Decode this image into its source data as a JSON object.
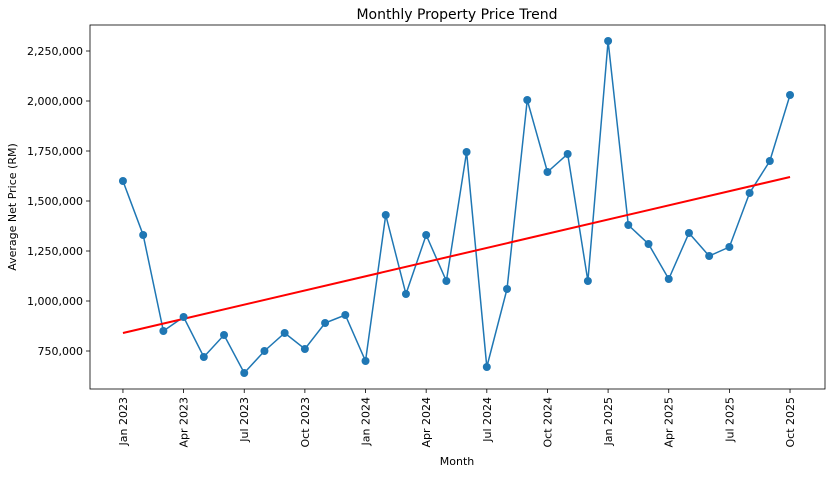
{
  "chart_data": {
    "type": "line",
    "title": "Monthly Property Price Trend",
    "xlabel": "Month",
    "ylabel": "Average Net Price (RM)",
    "x": [
      "2023-01",
      "2023-02",
      "2023-03",
      "2023-04",
      "2023-05",
      "2023-06",
      "2023-07",
      "2023-08",
      "2023-09",
      "2023-10",
      "2023-11",
      "2023-12",
      "2024-01",
      "2024-02",
      "2024-03",
      "2024-04",
      "2024-05",
      "2024-06",
      "2024-07",
      "2024-08",
      "2024-09",
      "2024-10",
      "2024-11",
      "2024-12",
      "2025-01",
      "2025-02",
      "2025-03",
      "2025-04",
      "2025-05",
      "2025-06",
      "2025-07",
      "2025-08",
      "2025-09",
      "2025-10"
    ],
    "series": [
      {
        "values": [
          1600000,
          1330000,
          850000,
          920000,
          720000,
          830000,
          640000,
          750000,
          840000,
          760000,
          890000,
          930000,
          700000,
          1430000,
          1035000,
          1330000,
          1100000,
          1745000,
          670000,
          1060000,
          2005000,
          1645000,
          1735000,
          1100000,
          2300000,
          1380000,
          1285000,
          1110000,
          1340000,
          1225000,
          1270000,
          1540000,
          1700000,
          2030000
        ],
        "color": "#1f77b4",
        "marker": "circle"
      }
    ],
    "trend_line": {
      "start": [
        "2023-01",
        840000
      ],
      "end": [
        "2025-10",
        1620000
      ],
      "color": "#ff0000"
    },
    "xticks": [
      "Jan 2023",
      "Apr 2023",
      "Jul 2023",
      "Oct 2023",
      "Jan 2024",
      "Apr 2024",
      "Jul 2024",
      "Oct 2024",
      "Jan 2025",
      "Apr 2025",
      "Jul 2025",
      "Oct 2025"
    ],
    "yticks": [
      750000,
      1000000,
      1250000,
      1500000,
      1750000,
      2000000,
      2250000
    ],
    "ytick_labels": [
      "750,000",
      "1,000,000",
      "1,250,000",
      "1,500,000",
      "1,750,000",
      "2,000,000",
      "2,250,000"
    ],
    "ylim": [
      560000,
      2380000
    ],
    "grid": false
  }
}
